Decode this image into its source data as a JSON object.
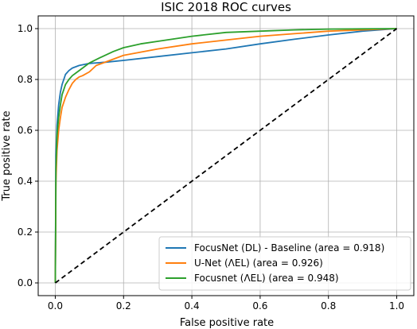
{
  "chart_data": {
    "type": "line",
    "title": "ISIC 2018 ROC curves",
    "xlabel": "False positive rate",
    "ylabel": "True positive rate",
    "xlim": [
      -0.05,
      1.05
    ],
    "ylim": [
      -0.05,
      1.05
    ],
    "xticks": [
      "0.0",
      "0.2",
      "0.4",
      "0.6",
      "0.8",
      "1.0"
    ],
    "yticks": [
      "0.0",
      "0.2",
      "0.4",
      "0.6",
      "0.8",
      "1.0"
    ],
    "grid": true,
    "legend_position": "lower right",
    "series": [
      {
        "name": "FocusNet (DL) - Baseline (area = 0.918)",
        "color": "#1f77b4",
        "x": [
          0,
          0.002,
          0.005,
          0.01,
          0.015,
          0.02,
          0.03,
          0.04,
          0.05,
          0.07,
          0.1,
          0.15,
          0.2,
          0.3,
          0.4,
          0.5,
          0.6,
          0.7,
          0.8,
          0.9,
          1.0
        ],
        "y": [
          0,
          0.5,
          0.62,
          0.7,
          0.75,
          0.78,
          0.82,
          0.835,
          0.845,
          0.855,
          0.863,
          0.868,
          0.875,
          0.89,
          0.905,
          0.92,
          0.94,
          0.958,
          0.975,
          0.99,
          1.0
        ]
      },
      {
        "name": "U-Net (ΛEL) (area = 0.926)",
        "color": "#ff7f0e",
        "x": [
          0,
          0.002,
          0.005,
          0.01,
          0.015,
          0.02,
          0.03,
          0.04,
          0.05,
          0.06,
          0.07,
          0.08,
          0.1,
          0.12,
          0.15,
          0.2,
          0.3,
          0.4,
          0.5,
          0.6,
          0.7,
          0.8,
          0.9,
          1.0
        ],
        "y": [
          0,
          0.4,
          0.52,
          0.6,
          0.65,
          0.69,
          0.73,
          0.76,
          0.785,
          0.8,
          0.81,
          0.815,
          0.83,
          0.855,
          0.87,
          0.895,
          0.92,
          0.94,
          0.955,
          0.97,
          0.98,
          0.99,
          0.995,
          1.0
        ]
      },
      {
        "name": "Focusnet (ΛEL) (area = 0.948)",
        "color": "#2ca02c",
        "x": [
          0,
          0.002,
          0.005,
          0.01,
          0.015,
          0.02,
          0.03,
          0.04,
          0.05,
          0.06,
          0.08,
          0.1,
          0.13,
          0.17,
          0.2,
          0.25,
          0.3,
          0.4,
          0.5,
          0.6,
          0.7,
          0.8,
          0.9,
          1.0
        ],
        "y": [
          0,
          0.45,
          0.58,
          0.65,
          0.7,
          0.74,
          0.78,
          0.8,
          0.815,
          0.825,
          0.845,
          0.865,
          0.885,
          0.91,
          0.925,
          0.94,
          0.95,
          0.97,
          0.985,
          0.99,
          0.995,
          0.998,
          0.999,
          1.0
        ]
      },
      {
        "name": "",
        "color": "#000000",
        "dashed": true,
        "x": [
          0,
          1
        ],
        "y": [
          0,
          1
        ]
      }
    ]
  }
}
